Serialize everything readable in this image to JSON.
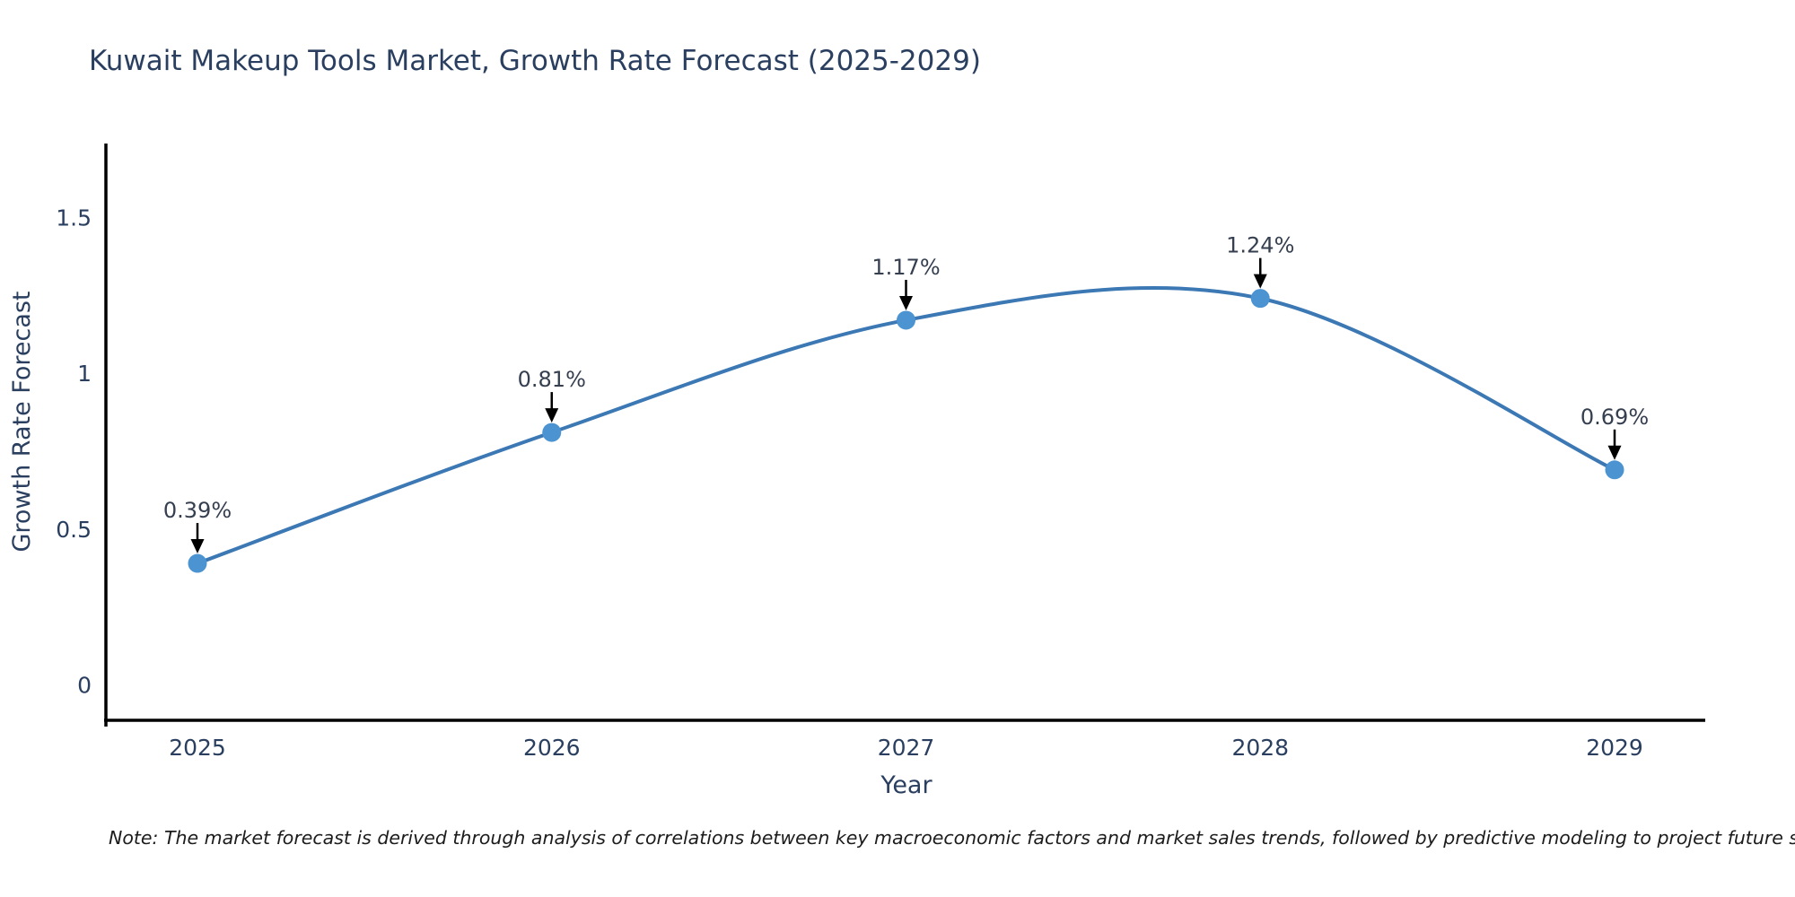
{
  "page": {
    "title": "Kuwait Makeup Tools Market, Growth Rate Forecast (2025-2029)",
    "note": "Note: The market forecast is derived through analysis of correlations between key macroeconomic factors and market sales trends, followed by predictive modeling to project future sales"
  },
  "chart_data": {
    "type": "line",
    "line_shape": "spline",
    "title": "Kuwait Makeup Tools Market, Growth Rate Forecast (2025-2029)",
    "categories": [
      "2025",
      "2026",
      "2027",
      "2028",
      "2029"
    ],
    "series": [
      {
        "name": "Growth Rate Forecast",
        "values": [
          0.39,
          0.81,
          1.17,
          1.24,
          0.69
        ]
      }
    ],
    "point_labels": [
      "0.39%",
      "0.81%",
      "1.17%",
      "1.24%",
      "0.69%"
    ],
    "xlabel": "Year",
    "ylabel": "Growth Rate Forecast",
    "yticks": [
      0,
      0.5,
      1,
      1.5
    ],
    "ytick_labels": [
      "0",
      "0.5",
      "1",
      "1.5"
    ],
    "ylim": [
      -0.11,
      1.74
    ],
    "grid": false,
    "legend": "none",
    "annotations": "arrow-down-to-point",
    "colors": {
      "line": "#3b78b4",
      "marker": "#4b93d1",
      "axis": "#000000",
      "text": "#2a3f5f",
      "arrow": "#000000",
      "note_text": "#1c1c1c",
      "background": "#ffffff"
    }
  }
}
